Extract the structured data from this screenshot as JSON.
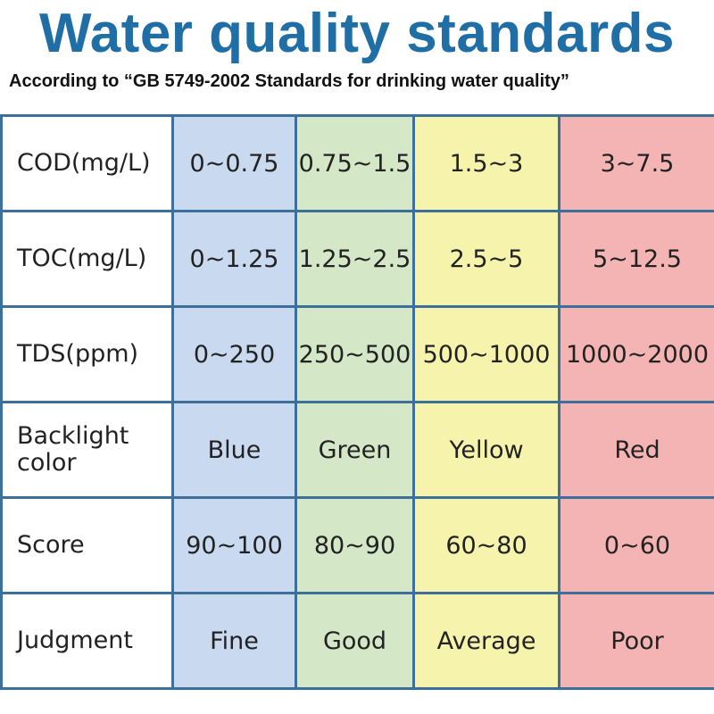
{
  "header": {
    "title": "Water quality standards",
    "subtitle": "According to “GB 5749-2002 Standards for drinking water quality”"
  },
  "table": {
    "rows": [
      [
        "COD(mg/L)",
        "0~0.75",
        "0.75~1.5",
        "1.5~3",
        "3~7.5"
      ],
      [
        "TOC(mg/L)",
        "0~1.25",
        "1.25~2.5",
        "2.5~5",
        "5~12.5"
      ],
      [
        "TDS(ppm)",
        "0~250",
        "250~500",
        "500~1000",
        "1000~2000"
      ],
      [
        "Backlight color",
        "Blue",
        "Green",
        "Yellow",
        "Red"
      ],
      [
        "Score",
        "90~100",
        "80~90",
        "60~80",
        "0~60"
      ],
      [
        "Judgment",
        "Fine",
        "Good",
        "Average",
        "Poor"
      ]
    ]
  }
}
